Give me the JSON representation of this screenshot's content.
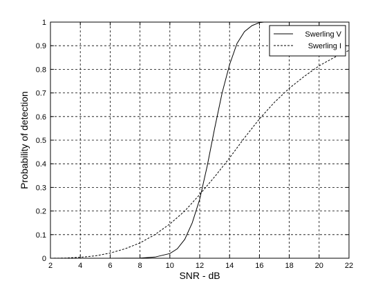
{
  "chart_data": {
    "type": "line",
    "xlabel": "SNR - dB",
    "ylabel": "Probability of detection",
    "xlim": [
      2,
      22
    ],
    "ylim": [
      0,
      1
    ],
    "xticks": [
      2,
      4,
      6,
      8,
      10,
      12,
      14,
      16,
      18,
      20,
      22
    ],
    "yticks": [
      0,
      0.1,
      0.2,
      0.3,
      0.4,
      0.5,
      0.6,
      0.7,
      0.8,
      0.9,
      1
    ],
    "grid": true,
    "legend_position": "top-right",
    "series": [
      {
        "name": "Swerling V",
        "style": "solid",
        "x": [
          2,
          4,
          6,
          8,
          9,
          10,
          10.5,
          11,
          11.5,
          12,
          12.5,
          13,
          13.5,
          14,
          14.5,
          15,
          15.5,
          16,
          16.3
        ],
        "y": [
          0,
          0,
          0,
          0.001,
          0.005,
          0.02,
          0.04,
          0.08,
          0.15,
          0.25,
          0.39,
          0.55,
          0.7,
          0.82,
          0.91,
          0.96,
          0.985,
          0.998,
          1.0
        ]
      },
      {
        "name": "Swerling I",
        "style": "dashed",
        "x": [
          2,
          3,
          4,
          5,
          6,
          7,
          8,
          9,
          10,
          11,
          12,
          13,
          14,
          15,
          16,
          17,
          18,
          19,
          20,
          21,
          22
        ],
        "y": [
          0,
          0.001,
          0.004,
          0.01,
          0.022,
          0.04,
          0.065,
          0.1,
          0.145,
          0.2,
          0.27,
          0.345,
          0.425,
          0.51,
          0.59,
          0.66,
          0.72,
          0.77,
          0.815,
          0.85,
          0.88
        ]
      }
    ]
  }
}
